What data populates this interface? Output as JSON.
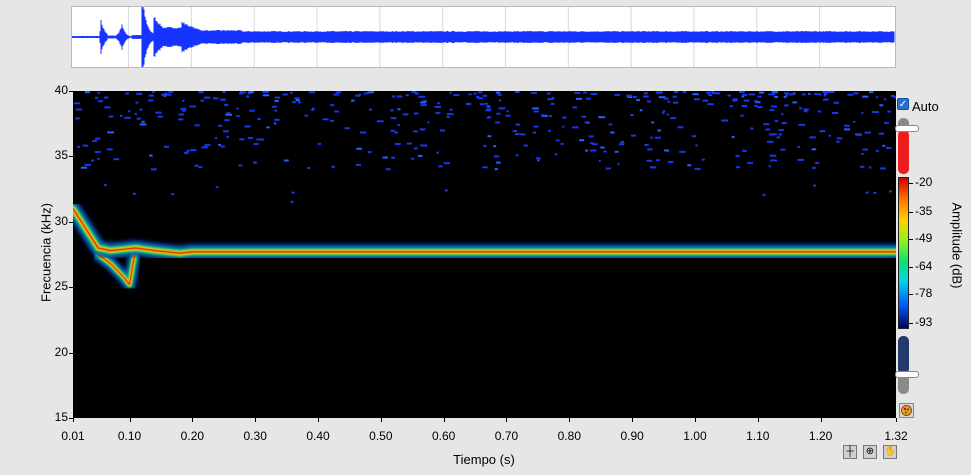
{
  "colors": {
    "background": "#e6e6e6",
    "plot_background": "#000000",
    "waveform_color": "#1633ff",
    "ridge_color": "#e83000"
  },
  "graph": {
    "autoscale_label": "Auto",
    "y_axis": {
      "title": "Frecuencia (kHz)",
      "ticks": [
        "40",
        "35",
        "30",
        "25",
        "20",
        "15"
      ]
    },
    "x_axis": {
      "title": "Tiempo (s)",
      "ticks": [
        "0.01",
        "0.10",
        "0.20",
        "0.30",
        "0.40",
        "0.50",
        "0.60",
        "0.70",
        "0.80",
        "0.90",
        "1.00",
        "1.10",
        "1.20",
        "1.32"
      ]
    },
    "colorbar": {
      "title": "Amplitude (dB)",
      "ticks": [
        "-20",
        "-35",
        "-49",
        "-64",
        "-78",
        "-93"
      ]
    }
  },
  "chart_data": {
    "type": "heatmap",
    "xlabel": "Tiempo (s)",
    "ylabel": "Frecuencia (kHz)",
    "xlim": [
      0.01,
      1.32
    ],
    "ylim": [
      15,
      40
    ],
    "zlabel": "Amplitude (dB)",
    "zlim": [
      -93,
      -20
    ],
    "ridge": {
      "x": [
        0.01,
        0.03,
        0.05,
        0.07,
        0.09,
        0.11,
        0.14,
        0.18,
        0.2,
        0.25,
        0.3,
        0.6,
        0.9,
        1.2,
        1.32
      ],
      "y": [
        31.0,
        29.5,
        28.0,
        27.8,
        27.9,
        28.0,
        27.8,
        27.6,
        27.7,
        27.7,
        27.7,
        27.7,
        27.7,
        27.7,
        27.7
      ]
    },
    "secondary_branch": {
      "x": [
        0.05,
        0.07,
        0.09,
        0.1
      ],
      "y": [
        27.5,
        26.8,
        25.8,
        25.2
      ]
    },
    "noise_band": {
      "y_range": [
        34,
        40
      ],
      "level_db": -85
    },
    "grid": false,
    "legend": "none"
  },
  "toolbar": {
    "cursor_tool": "crosshair-icon",
    "zoom_tool": "zoom-icon",
    "pan_tool": "hand-icon"
  }
}
